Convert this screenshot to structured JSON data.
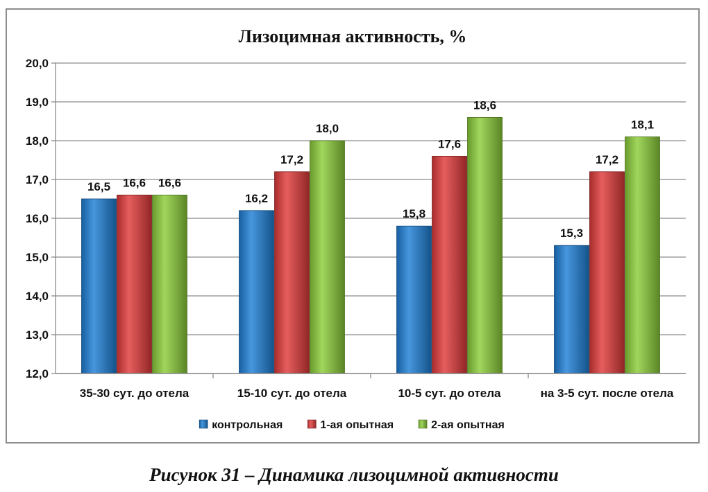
{
  "chart_data": {
    "type": "bar",
    "title": "Лизоцимная активность, %",
    "categories": [
      "35-30 сут. до отела",
      "15-10 сут. до отела",
      "10-5 сут. до отела",
      "на 3-5 сут. после отела"
    ],
    "series": [
      {
        "name": "контрольная",
        "color": "#1f7fd6",
        "values": [
          16.5,
          16.2,
          15.8,
          15.3
        ],
        "labels": [
          "16,5",
          "16,2",
          "15,8",
          "15,3"
        ]
      },
      {
        "name": "1-ая опытная",
        "color": "#e03b3b",
        "values": [
          16.6,
          17.2,
          17.6,
          17.2
        ],
        "labels": [
          "16,6",
          "17,2",
          "17,6",
          "17,2"
        ]
      },
      {
        "name": "2-ая опытная",
        "color": "#8ccd3a",
        "values": [
          16.6,
          18.0,
          18.6,
          18.1
        ],
        "labels": [
          "16,6",
          "18,0",
          "18,6",
          "18,1"
        ]
      }
    ],
    "ylim": [
      12.0,
      20.0
    ],
    "yticks": [
      "12,0",
      "13,0",
      "14,0",
      "15,0",
      "16,0",
      "17,0",
      "18,0",
      "19,0",
      "20,0"
    ],
    "grid": true,
    "legend_position": "bottom"
  },
  "caption": "Рисунок 31 – Динамика лизоцимной активности"
}
